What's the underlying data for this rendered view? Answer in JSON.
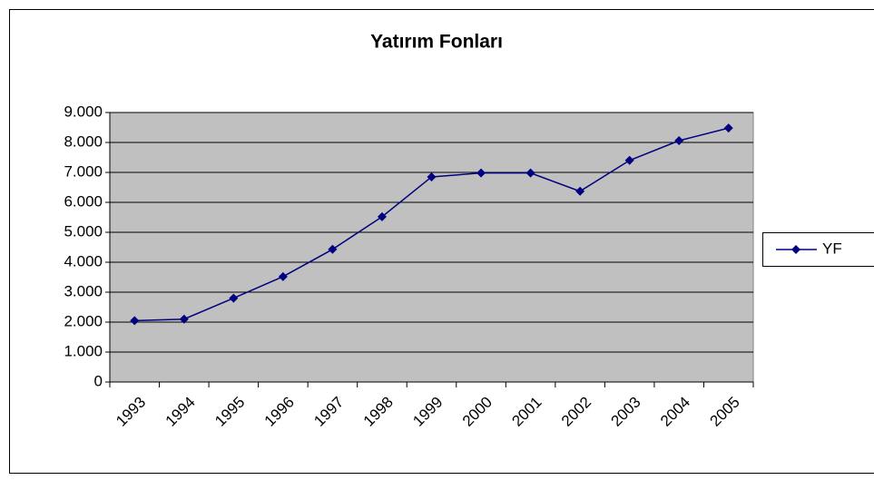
{
  "chart_data": {
    "type": "line",
    "title": "Yatırım Fonları",
    "categories": [
      "1993",
      "1994",
      "1995",
      "1996",
      "1997",
      "1998",
      "1999",
      "2000",
      "2001",
      "2002",
      "2003",
      "2004",
      "2005"
    ],
    "series": [
      {
        "name": "YF",
        "color": "#000080",
        "values": [
          2050,
          2100,
          2800,
          3520,
          4430,
          5520,
          6850,
          6980,
          6980,
          6370,
          7400,
          8060,
          8480
        ]
      }
    ],
    "ylim": [
      0,
      9000
    ],
    "yticks": [
      0,
      {
        "value": 1000,
        "label": "1.000"
      },
      {
        "value": 2000,
        "label": "2.000"
      },
      {
        "value": 3000,
        "label": "3.000"
      },
      {
        "value": 4000,
        "label": "4.000"
      },
      {
        "value": 5000,
        "label": "5.000"
      },
      {
        "value": 6000,
        "label": "6.000"
      },
      {
        "value": 7000,
        "label": "7.000"
      },
      {
        "value": 8000,
        "label": "8.000"
      },
      {
        "value": 9000,
        "label": "9.000"
      }
    ],
    "grid": true,
    "legend": "right",
    "plot_background": "#c0c0c0"
  }
}
